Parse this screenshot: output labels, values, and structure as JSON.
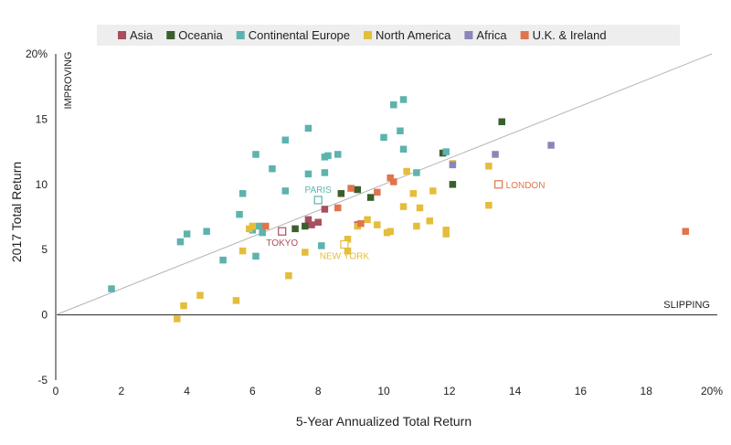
{
  "chart_data": {
    "type": "scatter",
    "title": "",
    "xlabel": "5-Year Annualized Total Return",
    "ylabel": "2017 Total Return",
    "xlim": [
      0,
      20
    ],
    "ylim": [
      -5,
      20
    ],
    "x_ticks": [
      {
        "value": 0,
        "label": "0"
      },
      {
        "value": 2,
        "label": "2"
      },
      {
        "value": 4,
        "label": "4"
      },
      {
        "value": 6,
        "label": "6"
      },
      {
        "value": 8,
        "label": "8"
      },
      {
        "value": 10,
        "label": "10"
      },
      {
        "value": 12,
        "label": "12"
      },
      {
        "value": 14,
        "label": "14"
      },
      {
        "value": 16,
        "label": "16"
      },
      {
        "value": 18,
        "label": "18"
      },
      {
        "value": 20,
        "label": "20%"
      }
    ],
    "y_ticks": [
      {
        "value": -5,
        "label": "-5"
      },
      {
        "value": 0,
        "label": "0"
      },
      {
        "value": 5,
        "label": "5"
      },
      {
        "value": 10,
        "label": "10"
      },
      {
        "value": 15,
        "label": "15"
      },
      {
        "value": 20,
        "label": "20%"
      }
    ],
    "grid": false,
    "legend_position": "top",
    "reference_line": {
      "from": [
        0,
        0
      ],
      "to": [
        20,
        20
      ],
      "color": "#b5b5b5"
    },
    "region_labels": {
      "improving": "IMPROVING",
      "slipping": "SLIPPING"
    },
    "series": [
      {
        "name": "Asia",
        "color": "#a94d5f",
        "points": [
          [
            7.7,
            7.3
          ],
          [
            7.8,
            6.9
          ],
          [
            8.0,
            7.1
          ],
          [
            8.2,
            8.1
          ],
          [
            9.2,
            6.9
          ]
        ]
      },
      {
        "name": "Oceania",
        "color": "#3a5f2c",
        "points": [
          [
            7.3,
            6.6
          ],
          [
            7.6,
            6.8
          ],
          [
            8.7,
            9.3
          ],
          [
            9.2,
            9.6
          ],
          [
            9.6,
            9.0
          ],
          [
            11.8,
            12.4
          ],
          [
            12.1,
            10.0
          ],
          [
            13.6,
            14.8
          ]
        ]
      },
      {
        "name": "Continental Europe",
        "color": "#5db3ad",
        "points": [
          [
            1.7,
            2.0
          ],
          [
            3.8,
            5.6
          ],
          [
            4.0,
            6.2
          ],
          [
            4.6,
            6.4
          ],
          [
            5.1,
            4.2
          ],
          [
            5.6,
            7.7
          ],
          [
            5.7,
            9.3
          ],
          [
            6.0,
            6.5
          ],
          [
            6.1,
            12.3
          ],
          [
            6.1,
            4.5
          ],
          [
            6.2,
            6.8
          ],
          [
            6.3,
            6.3
          ],
          [
            6.6,
            11.2
          ],
          [
            7.0,
            13.4
          ],
          [
            7.0,
            9.5
          ],
          [
            7.7,
            14.3
          ],
          [
            7.7,
            10.8
          ],
          [
            8.1,
            5.3
          ],
          [
            8.2,
            12.1
          ],
          [
            8.3,
            12.2
          ],
          [
            8.2,
            10.9
          ],
          [
            8.6,
            12.3
          ],
          [
            10.0,
            13.6
          ],
          [
            10.3,
            16.1
          ],
          [
            10.5,
            14.1
          ],
          [
            10.6,
            12.7
          ],
          [
            10.6,
            16.5
          ],
          [
            11.0,
            10.9
          ],
          [
            11.9,
            12.5
          ]
        ]
      },
      {
        "name": "North America",
        "color": "#e5bd3c",
        "points": [
          [
            3.7,
            -0.3
          ],
          [
            3.9,
            0.7
          ],
          [
            4.4,
            1.5
          ],
          [
            5.5,
            1.1
          ],
          [
            5.7,
            4.9
          ],
          [
            5.9,
            6.6
          ],
          [
            6.0,
            6.8
          ],
          [
            7.1,
            3.0
          ],
          [
            7.6,
            4.8
          ],
          [
            8.9,
            5.8
          ],
          [
            8.9,
            4.9
          ],
          [
            9.2,
            6.8
          ],
          [
            9.5,
            7.3
          ],
          [
            9.8,
            6.9
          ],
          [
            10.1,
            6.3
          ],
          [
            10.2,
            6.4
          ],
          [
            10.6,
            8.3
          ],
          [
            10.7,
            11.0
          ],
          [
            10.9,
            9.3
          ],
          [
            11.0,
            6.8
          ],
          [
            11.1,
            8.2
          ],
          [
            11.4,
            7.2
          ],
          [
            11.5,
            9.5
          ],
          [
            11.9,
            6.2
          ],
          [
            11.9,
            6.5
          ],
          [
            12.1,
            11.6
          ],
          [
            13.2,
            11.4
          ],
          [
            13.2,
            8.4
          ]
        ]
      },
      {
        "name": "Africa",
        "color": "#8a87b8",
        "points": [
          [
            12.1,
            11.5
          ],
          [
            13.4,
            12.3
          ],
          [
            15.1,
            13.0
          ]
        ]
      },
      {
        "name": "U.K. & Ireland",
        "color": "#e0754d",
        "points": [
          [
            6.4,
            6.8
          ],
          [
            8.6,
            8.2
          ],
          [
            9.0,
            9.7
          ],
          [
            9.3,
            7.0
          ],
          [
            9.8,
            9.4
          ],
          [
            10.2,
            10.5
          ],
          [
            10.3,
            10.2
          ],
          [
            19.2,
            6.4
          ]
        ]
      }
    ],
    "highlighted_cities": [
      {
        "name": "PARIS",
        "x": 8.0,
        "y": 8.8,
        "color": "#5db3ad",
        "anchor": "above"
      },
      {
        "name": "TOKYO",
        "x": 6.9,
        "y": 6.4,
        "color": "#a94d5f",
        "anchor": "below"
      },
      {
        "name": "NEW YORK",
        "x": 8.8,
        "y": 5.4,
        "color": "#e5bd3c",
        "anchor": "below"
      },
      {
        "name": "LONDON",
        "x": 13.5,
        "y": 10.0,
        "color": "#e0754d",
        "anchor": "right"
      }
    ]
  }
}
